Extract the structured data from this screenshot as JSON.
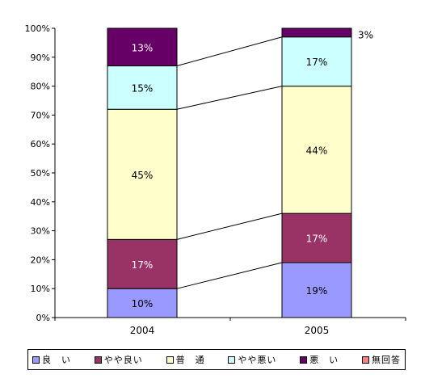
{
  "chart_data": {
    "type": "bar",
    "stacked": true,
    "percent_stacked": true,
    "categories": [
      "2004",
      "2005"
    ],
    "series": [
      {
        "name": "良　い",
        "values": [
          10,
          19
        ],
        "color": "#9999ff"
      },
      {
        "name": "やや良い",
        "values": [
          17,
          17
        ],
        "color": "#993366"
      },
      {
        "name": "普　通",
        "values": [
          45,
          44
        ],
        "color": "#ffffcc"
      },
      {
        "name": "やや悪い",
        "values": [
          15,
          17
        ],
        "color": "#ccffff"
      },
      {
        "name": "悪　い",
        "values": [
          13,
          3
        ],
        "color": "#660066"
      },
      {
        "name": "無回答",
        "values": [
          0,
          0
        ],
        "color": "#ff8080"
      }
    ],
    "data_labels": [
      [
        "10%",
        "19%"
      ],
      [
        "17%",
        "17%"
      ],
      [
        "45%",
        "44%"
      ],
      [
        "15%",
        "17%"
      ],
      [
        "13%",
        "3%"
      ]
    ],
    "y_ticks": [
      "0%",
      "10%",
      "20%",
      "30%",
      "40%",
      "50%",
      "60%",
      "70%",
      "80%",
      "90%",
      "100%"
    ],
    "ylim": [
      0,
      100
    ],
    "grid": false,
    "series_lines": true,
    "legend_position": "bottom"
  }
}
